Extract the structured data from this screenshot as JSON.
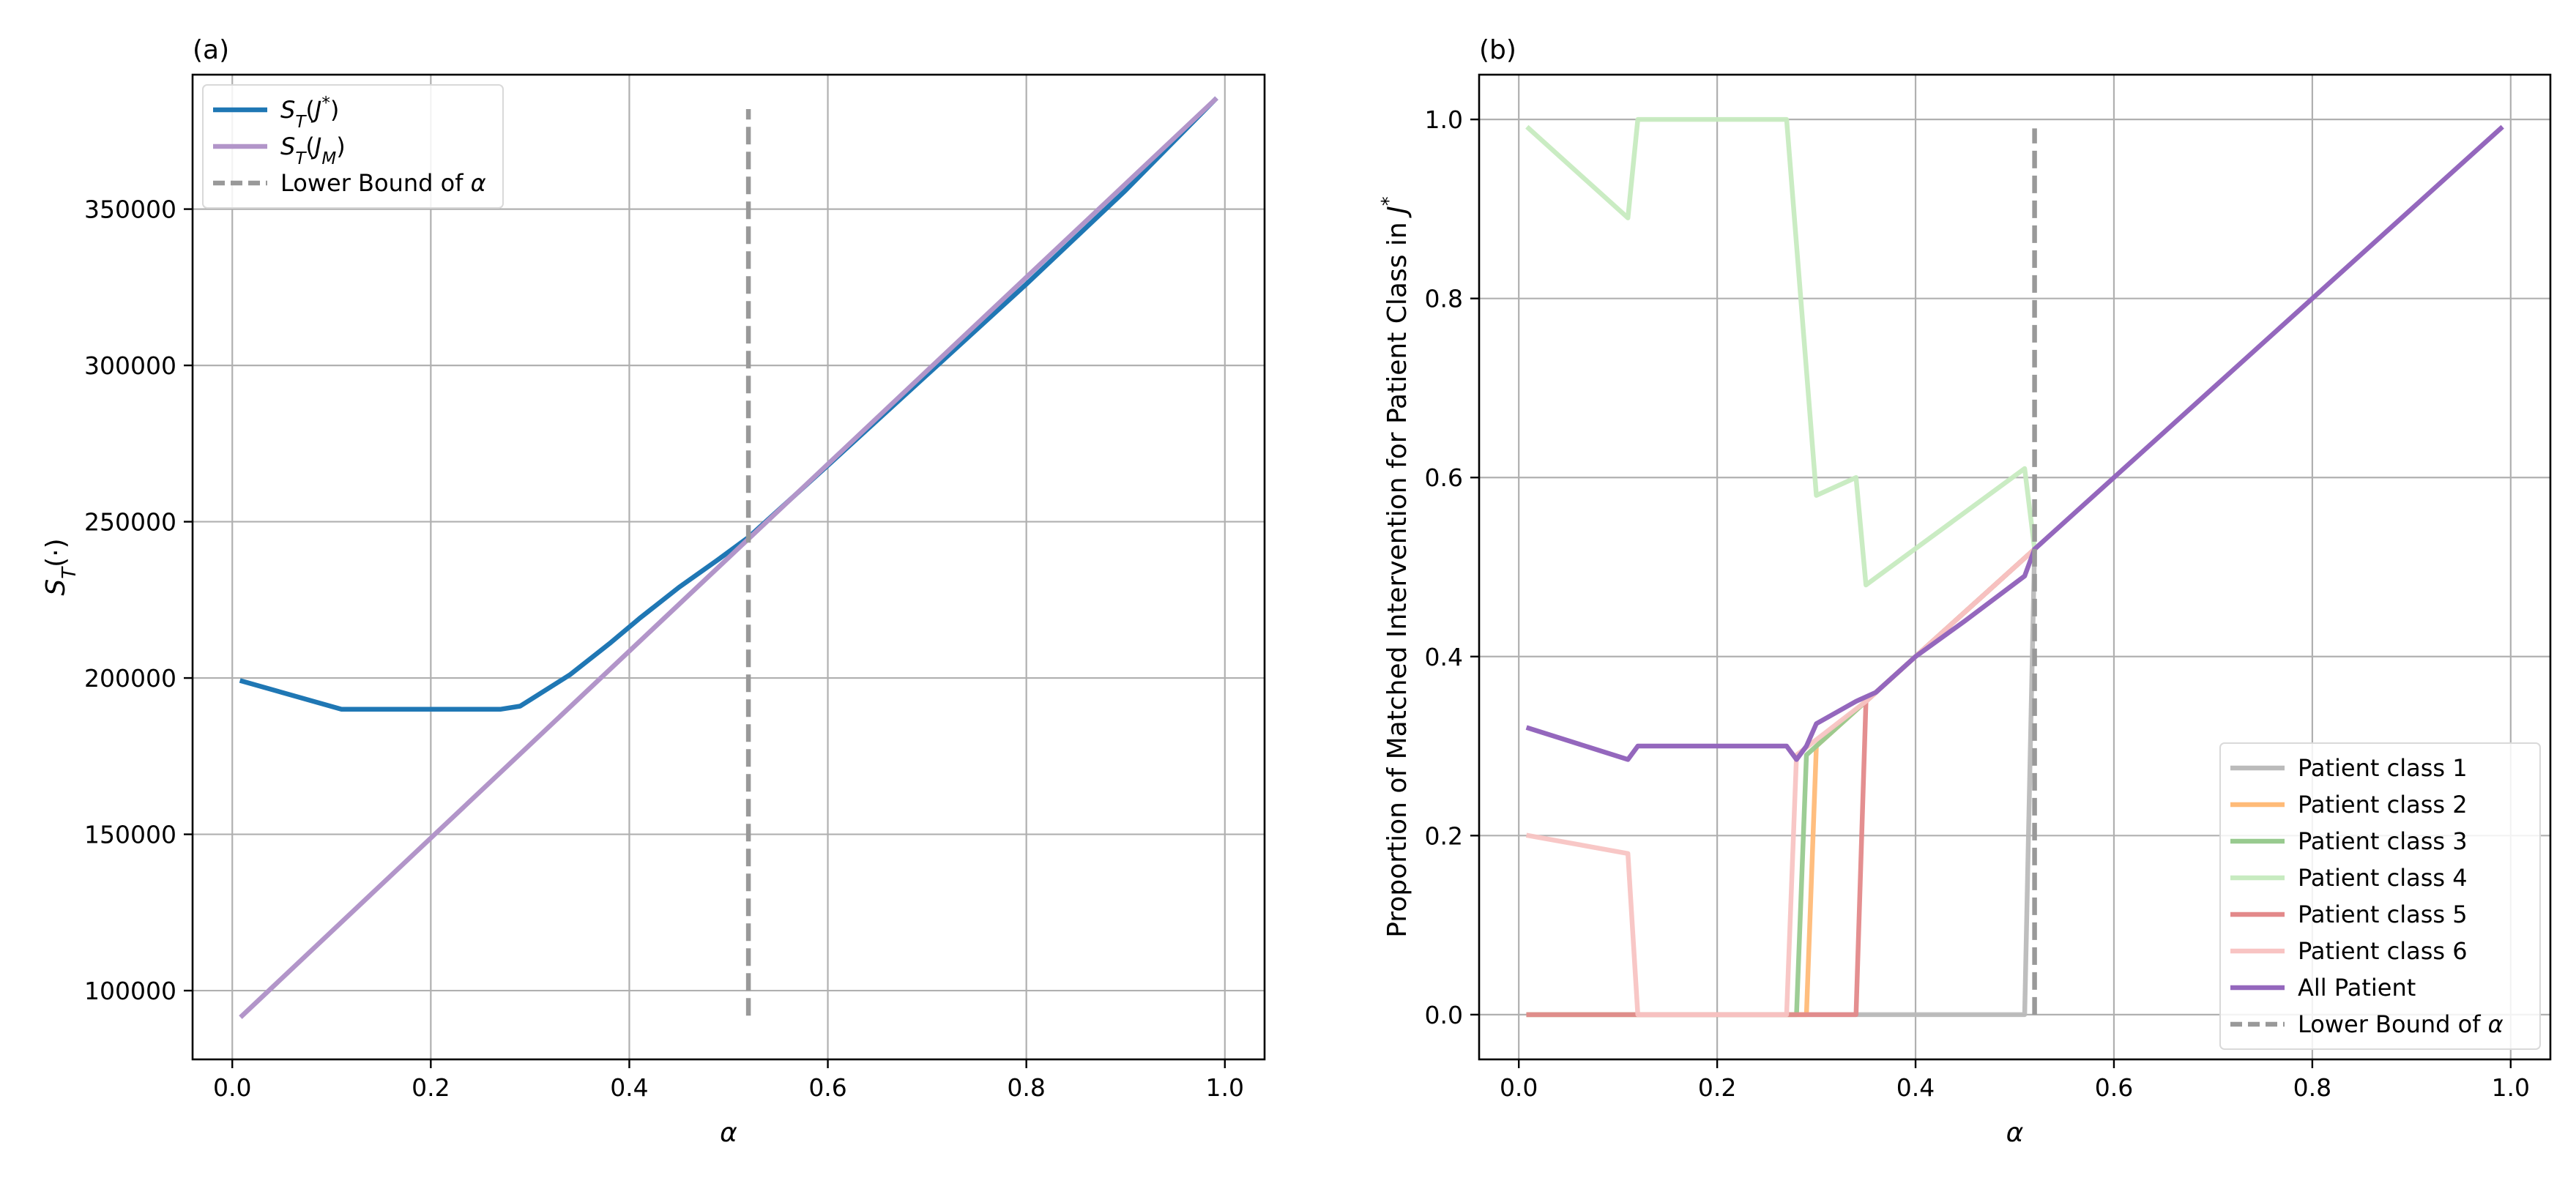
{
  "chart_data": [
    {
      "panel_label": "(a)",
      "type": "line",
      "xlabel": "α",
      "ylabel": "S_T(·)",
      "xlim": [
        -0.04,
        1.04
      ],
      "ylim": [
        78000,
        393000
      ],
      "xticks": [
        0.0,
        0.2,
        0.4,
        0.6,
        0.8,
        1.0
      ],
      "xtick_labels": [
        "0.0",
        "0.2",
        "0.4",
        "0.6",
        "0.8",
        "1.0"
      ],
      "yticks": [
        100000,
        150000,
        200000,
        250000,
        300000,
        350000
      ],
      "ytick_labels": [
        "100000",
        "150000",
        "200000",
        "250000",
        "300000",
        "350000"
      ],
      "grid": true,
      "legend_position": "upper-left",
      "series": [
        {
          "name": "S_T(J*)",
          "color": "#1f77b4",
          "dash": false,
          "x": [
            0.01,
            0.11,
            0.27,
            0.29,
            0.3,
            0.34,
            0.38,
            0.41,
            0.45,
            0.49,
            0.52,
            0.6,
            0.7,
            0.8,
            0.9,
            0.99
          ],
          "y": [
            199000,
            190000,
            190000,
            191000,
            193000,
            201000,
            211000,
            219000,
            229000,
            238000,
            245000,
            268000,
            297000,
            326000,
            356000,
            385000
          ]
        },
        {
          "name": "S_T(J_M)",
          "color": "#b295c9",
          "dash": false,
          "x": [
            0.01,
            0.99
          ],
          "y": [
            92000,
            385000
          ]
        },
        {
          "name": "Lower Bound of α",
          "color": "#999999",
          "dash": true,
          "x": [
            0.52,
            0.52
          ],
          "y": [
            92000,
            382000
          ]
        }
      ]
    },
    {
      "panel_label": "(b)",
      "type": "line",
      "xlabel": "α",
      "ylabel": "Proportion of Matched Intervention for Patient Class in J*",
      "xlim": [
        -0.04,
        1.04
      ],
      "ylim": [
        -0.05,
        1.05
      ],
      "xticks": [
        0.0,
        0.2,
        0.4,
        0.6,
        0.8,
        1.0
      ],
      "xtick_labels": [
        "0.0",
        "0.2",
        "0.4",
        "0.6",
        "0.8",
        "1.0"
      ],
      "yticks": [
        0.0,
        0.2,
        0.4,
        0.6,
        0.8,
        1.0
      ],
      "ytick_labels": [
        "0.0",
        "0.2",
        "0.4",
        "0.6",
        "0.8",
        "1.0"
      ],
      "grid": true,
      "legend_position": "lower-right",
      "series": [
        {
          "name": "Patient class 1",
          "color": "#bbbbbb",
          "dash": false,
          "x": [
            0.01,
            0.51,
            0.52
          ],
          "y": [
            0.0,
            0.0,
            0.52
          ]
        },
        {
          "name": "Patient class 2",
          "color": "#ffbb78",
          "dash": false,
          "x": [
            0.01,
            0.29,
            0.3,
            0.35,
            0.4,
            0.52
          ],
          "y": [
            0.0,
            0.0,
            0.3,
            0.35,
            0.4,
            0.52
          ]
        },
        {
          "name": "Patient class 3",
          "color": "#98ca8f",
          "dash": false,
          "x": [
            0.01,
            0.28,
            0.29,
            0.35,
            0.4,
            0.52
          ],
          "y": [
            0.0,
            0.0,
            0.29,
            0.35,
            0.4,
            0.52
          ]
        },
        {
          "name": "Patient class 4",
          "color": "#c7ebc0",
          "dash": false,
          "x": [
            0.01,
            0.11,
            0.12,
            0.27,
            0.3,
            0.34,
            0.35,
            0.51,
            0.52
          ],
          "y": [
            0.99,
            0.89,
            1.0,
            1.0,
            0.58,
            0.6,
            0.48,
            0.61,
            0.52
          ]
        },
        {
          "name": "Patient class 5",
          "color": "#e3898a",
          "dash": false,
          "x": [
            0.01,
            0.34,
            0.35,
            0.4,
            0.52
          ],
          "y": [
            0.0,
            0.0,
            0.35,
            0.4,
            0.52
          ]
        },
        {
          "name": "Patient class 6",
          "color": "#f8c4c3",
          "dash": false,
          "x": [
            0.01,
            0.11,
            0.12,
            0.27,
            0.28,
            0.35,
            0.4,
            0.52
          ],
          "y": [
            0.2,
            0.18,
            0.0,
            0.0,
            0.29,
            0.35,
            0.4,
            0.52
          ]
        },
        {
          "name": "All Patient",
          "color": "#9467bd",
          "dash": false,
          "x": [
            0.01,
            0.11,
            0.12,
            0.27,
            0.28,
            0.29,
            0.3,
            0.34,
            0.36,
            0.4,
            0.45,
            0.51,
            0.52,
            0.6,
            0.7,
            0.8,
            0.9,
            0.99
          ],
          "y": [
            0.32,
            0.285,
            0.3,
            0.3,
            0.285,
            0.3,
            0.325,
            0.35,
            0.36,
            0.4,
            0.44,
            0.49,
            0.52,
            0.6,
            0.7,
            0.8,
            0.9,
            0.99
          ]
        },
        {
          "name": "Lower Bound of α",
          "color": "#999999",
          "dash": true,
          "x": [
            0.52,
            0.52
          ],
          "y": [
            0.0,
            0.99
          ]
        }
      ]
    }
  ]
}
